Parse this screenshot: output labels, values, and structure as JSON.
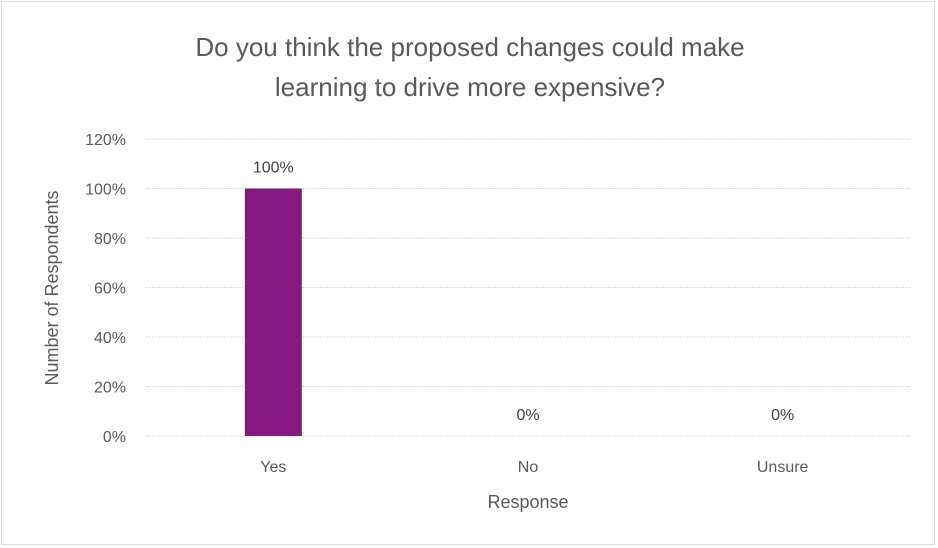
{
  "chart_data": {
    "type": "bar",
    "title_lines": [
      "Do you think the proposed changes could make",
      "learning to drive more expensive?"
    ],
    "categories": [
      "Yes",
      "No",
      "Unsure"
    ],
    "values": [
      100,
      0,
      0
    ],
    "data_labels": [
      "100%",
      "0%",
      "0%"
    ],
    "ylim": [
      0,
      120
    ],
    "yticks": [
      0,
      20,
      40,
      60,
      80,
      100,
      120
    ],
    "ytick_labels": [
      "0%",
      "20%",
      "40%",
      "60%",
      "80%",
      "100%",
      "120%"
    ],
    "xlabel": "Response",
    "ylabel": "Number of Respondents",
    "bar_color": "#86197f",
    "grid": true,
    "legend": false
  }
}
